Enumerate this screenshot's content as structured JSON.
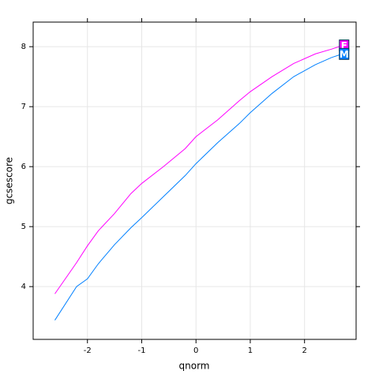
{
  "chart_data": {
    "type": "line",
    "xlabel": "qnorm",
    "ylabel": "gcsescore",
    "x": [
      -2.6,
      -2.2,
      -2,
      -1.8,
      -1.5,
      -1.2,
      -1,
      -0.6,
      -0.2,
      0,
      0.4,
      0.8,
      1,
      1.4,
      1.8,
      2.2,
      2.5,
      2.7
    ],
    "series": [
      {
        "name": "F",
        "color": "#ff00ff",
        "values": [
          3.88,
          4.4,
          4.68,
          4.93,
          5.22,
          5.55,
          5.72,
          6.0,
          6.3,
          6.5,
          6.78,
          7.1,
          7.25,
          7.5,
          7.72,
          7.88,
          7.96,
          8.02
        ]
      },
      {
        "name": "M",
        "color": "#0080ff",
        "values": [
          3.44,
          4.0,
          4.13,
          4.38,
          4.7,
          4.98,
          5.15,
          5.5,
          5.85,
          6.05,
          6.4,
          6.72,
          6.9,
          7.22,
          7.5,
          7.7,
          7.82,
          7.88
        ]
      }
    ],
    "xlim": [
      -3.0,
      2.95
    ],
    "ylim": [
      3.12,
      8.41
    ],
    "xticks": [
      -2,
      -1,
      0,
      1,
      2
    ],
    "yticks": [
      4,
      5,
      6,
      7,
      8
    ],
    "grid": true
  }
}
